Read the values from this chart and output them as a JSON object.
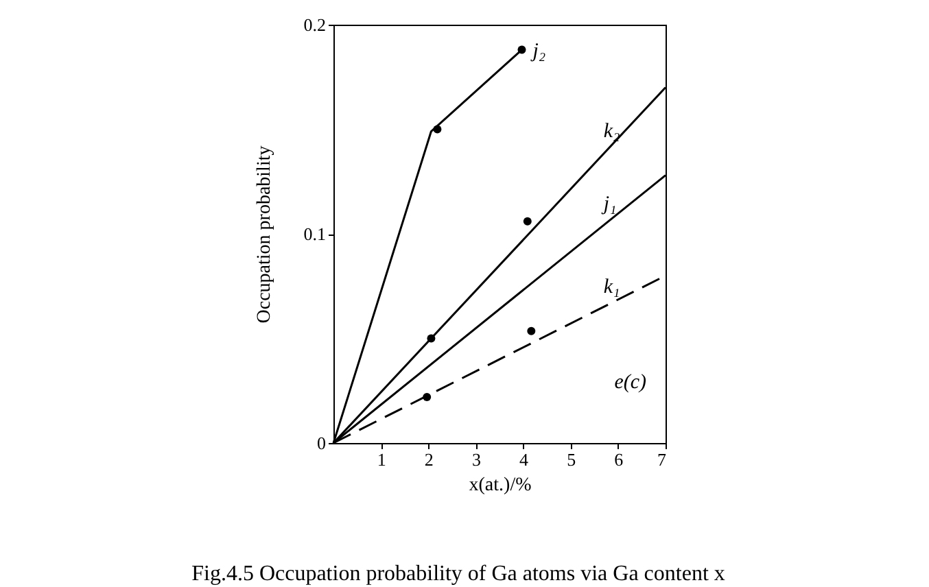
{
  "chart_data": {
    "type": "line",
    "title": "Fig.4.5    Occupation probability of Ga atoms via Ga content x",
    "xlabel": "x(at.)/%",
    "ylabel": "Occupation probability",
    "xlim": [
      0,
      7
    ],
    "xticks": [
      1,
      2,
      3,
      4,
      5,
      6,
      7
    ],
    "ylim": [
      0,
      0.2
    ],
    "yticks": [
      {
        "value": 0,
        "label": "0"
      },
      {
        "value": 0.1,
        "label": "0.1"
      },
      {
        "value": 0.2,
        "label": "0.2"
      }
    ],
    "series": [
      {
        "type": "line",
        "name": "j₂",
        "color": "#000000",
        "x": [
          0,
          2.06,
          3.97
        ],
        "values": [
          0,
          0.149,
          0.188
        ],
        "line_style": "solid"
      },
      {
        "type": "line",
        "name": "k₂",
        "color": "#000000",
        "x": [
          0,
          7
        ],
        "values": [
          0,
          0.17
        ],
        "line_style": "solid"
      },
      {
        "type": "line",
        "name": "j₁",
        "color": "#000000",
        "x": [
          0,
          7
        ],
        "values": [
          0,
          0.128
        ],
        "line_style": "solid"
      },
      {
        "type": "line",
        "name": "k₁",
        "color": "#000000",
        "x": [
          0,
          7
        ],
        "values": [
          0,
          0.08
        ],
        "line_style": "dashed"
      },
      {
        "type": "scatter",
        "color": "#000000",
        "marker": "circle",
        "x": [
          2.19,
          3.97,
          2.06,
          4.09,
          4.17,
          1.97
        ],
        "values": [
          0.15,
          0.188,
          0.05,
          0.106,
          0.0535,
          0.022
        ]
      }
    ],
    "annotations": [
      "e(c)"
    ]
  }
}
